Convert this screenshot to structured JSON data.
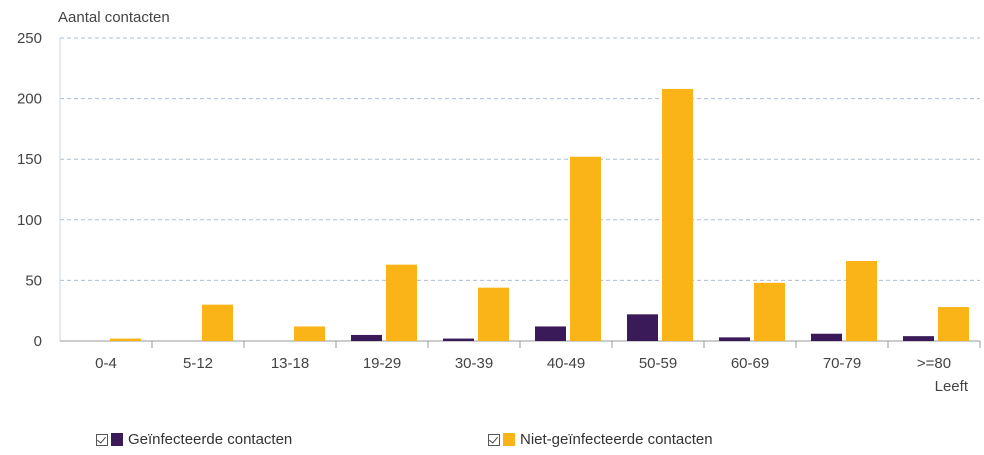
{
  "chart_data": {
    "type": "bar",
    "ylabel": "Aantal contacten",
    "xlabel": "Leeft",
    "ylim": [
      0,
      250
    ],
    "yticks": [
      "0",
      "50",
      "100",
      "150",
      "200",
      "250"
    ],
    "grid": true,
    "legend_position": "bottom",
    "categories": [
      "0-4",
      "5-12",
      "13-18",
      "19-29",
      "30-39",
      "40-49",
      "50-59",
      "60-69",
      "70-79",
      ">=80"
    ],
    "series": [
      {
        "name": "Geïnfecteerde contacten",
        "color": "#3b1a5a",
        "values": [
          0,
          0,
          0,
          5,
          2,
          12,
          22,
          3,
          6,
          4
        ]
      },
      {
        "name": "Niet-geïnfecteerde contacten",
        "color": "#fab418",
        "values": [
          2,
          30,
          12,
          63,
          44,
          152,
          208,
          48,
          66,
          28
        ]
      }
    ]
  }
}
